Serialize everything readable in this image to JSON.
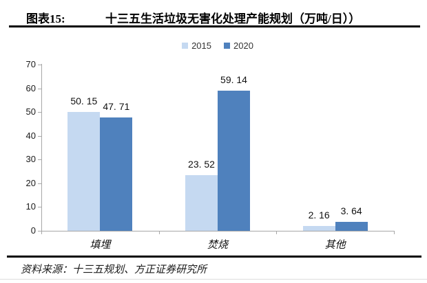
{
  "header": {
    "figure_label": "图表15:",
    "title": "十三五生活垃圾无害化处理产能规划（万吨/日））"
  },
  "chart_data": {
    "type": "bar",
    "title": "十三五生活垃圾无害化处理产能规划（万吨/日））",
    "categories": [
      "填埋",
      "焚烧",
      "其他"
    ],
    "series": [
      {
        "name": "2015",
        "color": "#c5d9f1",
        "values": [
          50.15,
          23.52,
          2.16
        ],
        "labels": [
          "50. 15",
          "23. 52",
          "2. 16"
        ]
      },
      {
        "name": "2020",
        "color": "#4f81bd",
        "values": [
          47.71,
          59.14,
          3.64
        ],
        "labels": [
          "47. 71",
          "59. 14",
          "3. 64"
        ]
      }
    ],
    "xlabel": "",
    "ylabel": "",
    "ylim": [
      0,
      70
    ],
    "yticks": [
      70,
      60,
      50,
      40,
      30,
      20,
      10,
      0
    ],
    "grid": false,
    "legend_position": "top"
  },
  "footer": {
    "source": "资料来源：十三五规划、方正证券研究所"
  },
  "colors": {
    "axis": "#a6a6a6",
    "series_2015": "#c5d9f1",
    "series_2020": "#4f81bd"
  }
}
